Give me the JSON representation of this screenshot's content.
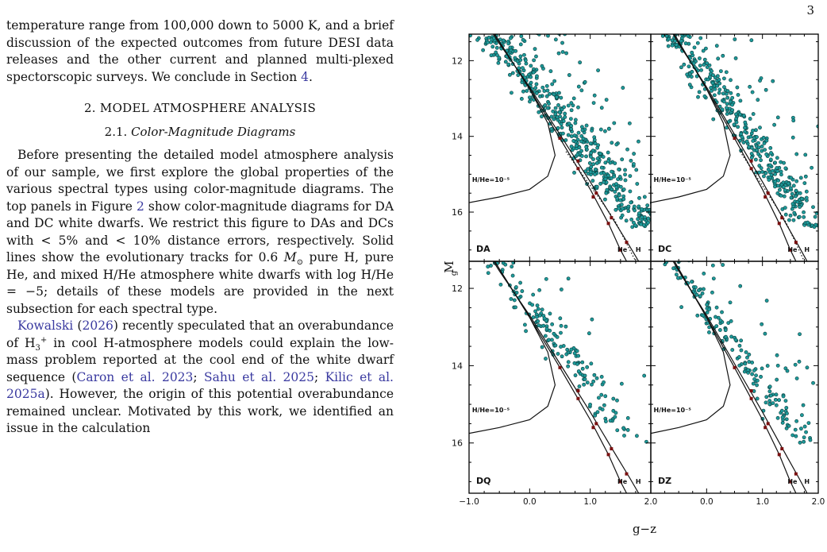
{
  "page_number": "3",
  "paragraph1": {
    "text": "temperature range from 100,000 down to 5000 K, and a brief discussion of the expected outcomes from future DESI data releases and the other current and planned multi-plexed spectorscopic surveys. We conclude in Section ",
    "link": "4",
    "tail": "."
  },
  "section_heading": "2. MODEL ATMOSPHERE ANALYSIS",
  "subsection": {
    "number": "2.1.",
    "title": "Color-Magnitude Diagrams"
  },
  "paragraph2": {
    "part1": "Before presenting the detailed model atmosphere analysis of our sample, we first explore the global properties of the various spectral types using color-magnitude diagrams. The top panels in Figure ",
    "fig_link": "2",
    "part2": " show color-magnitude diagrams for DA and DC white dwarfs. We restrict this figure to DAs and DCs with < 5% and < 10% distance errors, respectively. Solid lines show the evolutionary tracks for 0.6 ",
    "msun": "M",
    "msun_sub": "⊙",
    "part3": " pure H, pure He, and mixed H/He atmosphere white dwarfs with log H/He = −5; details of these models are provided in the next subsection for each spectral type."
  },
  "paragraph3": {
    "link1": "Kowalski",
    "link1_year": "2026",
    "part1": " recently speculated that an overabundance of H",
    "h3_sub": "3",
    "h3_sup": "+",
    "part2": " in cool H-atmosphere models could explain the low-mass problem reported at the cool end of the white dwarf sequence (",
    "cite1": "Caron et al. 2023",
    "sep1": "; ",
    "cite2": "Sahu et al. 2025",
    "sep2": "; ",
    "cite3": "Kilic et al. 2025a",
    "part3": "). However, the origin of this potential overabundance remained unclear. Motivated by this work, we identified an issue in the calculation"
  },
  "chart_data": {
    "type": "scatter",
    "title": "",
    "xlabel": "g−z",
    "ylabel": "M_g",
    "xlim": [
      -1.0,
      2.0
    ],
    "ylim": [
      17.3,
      11.3
    ],
    "y_inverted": true,
    "x_ticks": [
      "−1.0",
      "0.0",
      "1.0",
      "2.0"
    ],
    "y_ticks": [
      "12",
      "14",
      "16"
    ],
    "marker_color": "#1e9a9a",
    "track_labels": {
      "mixed": "H/He=10⁻⁵",
      "he": "He",
      "h": "H"
    },
    "panels": [
      {
        "name": "DA",
        "n_points": 520,
        "scatter": 0.42
      },
      {
        "name": "DC",
        "n_points": 420,
        "scatter": 0.36
      },
      {
        "name": "DQ",
        "n_points": 170,
        "scatter": 0.34
      },
      {
        "name": "DZ",
        "n_points": 190,
        "scatter": 0.32
      }
    ],
    "note": "Scatter points are a synthetic reconstruction of the cloud shape; individual values cannot be read from the image.",
    "tracks": {
      "pure_H": [
        [
          -1.0,
          10.3
        ],
        [
          -0.5,
          11.55
        ],
        [
          0.0,
          12.7
        ],
        [
          0.5,
          13.95
        ],
        [
          1.0,
          15.2
        ],
        [
          1.4,
          16.25
        ],
        [
          1.65,
          16.9
        ],
        [
          1.8,
          17.3
        ]
      ],
      "pure_He": [
        [
          -1.0,
          10.2
        ],
        [
          -0.5,
          11.5
        ],
        [
          0.0,
          12.75
        ],
        [
          0.5,
          14.05
        ],
        [
          1.0,
          15.4
        ],
        [
          1.3,
          16.3
        ],
        [
          1.5,
          17.0
        ],
        [
          1.6,
          17.3
        ]
      ],
      "mixed_H_He": [
        [
          -1.0,
          10.2
        ],
        [
          -0.5,
          11.5
        ],
        [
          0.0,
          12.75
        ],
        [
          0.3,
          13.65
        ],
        [
          0.42,
          14.5
        ],
        [
          0.3,
          15.05
        ],
        [
          0.0,
          15.4
        ],
        [
          -0.5,
          15.6
        ],
        [
          -1.0,
          15.75
        ]
      ],
      "dotted": [
        [
          0.6,
          14.4
        ],
        [
          1.0,
          15.3
        ],
        [
          1.4,
          16.2
        ],
        [
          1.75,
          17.3
        ]
      ]
    },
    "track_markers": {
      "pure_H": [
        [
          0.8,
          14.65
        ],
        [
          1.1,
          15.5
        ],
        [
          1.35,
          16.15
        ],
        [
          1.6,
          16.8
        ]
      ],
      "pure_He": [
        [
          0.5,
          14.05
        ],
        [
          0.8,
          14.85
        ],
        [
          1.05,
          15.6
        ],
        [
          1.3,
          16.3
        ],
        [
          1.5,
          17.0
        ]
      ]
    }
  }
}
